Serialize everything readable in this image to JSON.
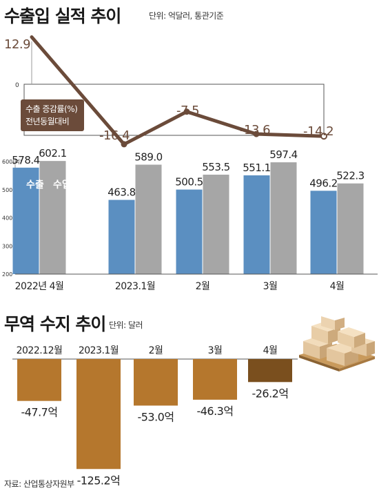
{
  "title1": "수출입 실적 추이",
  "unit1": "단위: 억달러, 통관기준",
  "title2": "무역 수지 추이",
  "unit2": "단위: 달러",
  "source": "자료: 산업통상자원부",
  "colors": {
    "export": "#5b8fc1",
    "import": "#a6a6a6",
    "growth_line": "#6b4b3a",
    "balance": "#b5772d",
    "balance_latest": "#7a4f1e",
    "growth_label": "#6b4b3a"
  },
  "chart_data": [
    {
      "type": "line",
      "legend": [
        "수출 증감률(%)",
        "전년동월대비"
      ],
      "zero_label": "0",
      "categories": [
        "2022년 4월",
        "2023.1월",
        "2월",
        "3월",
        "4월"
      ],
      "values": [
        12.9,
        -16.4,
        -7.5,
        -13.6,
        -14.2
      ],
      "labels": [
        "12.9",
        "-16.4",
        "-7.5",
        "-13.6",
        "-14.2"
      ]
    },
    {
      "type": "bar",
      "categories": [
        "2022년 4월",
        "2023.1월",
        "2월",
        "3월",
        "4월"
      ],
      "series": [
        {
          "name": "수출",
          "values": [
            578.4,
            463.8,
            500.5,
            551.1,
            496.2
          ],
          "labels": [
            "578.4",
            "463.8",
            "500.5",
            "551.1",
            "496.2"
          ]
        },
        {
          "name": "수입",
          "values": [
            602.1,
            589.0,
            553.5,
            597.4,
            522.3
          ],
          "labels": [
            "602.1",
            "589.0",
            "553.5",
            "597.4",
            "522.3"
          ]
        }
      ],
      "ylim": [
        200,
        600
      ],
      "yticks": [
        "200",
        "300",
        "400",
        "500",
        "600(억)"
      ]
    },
    {
      "type": "bar",
      "categories": [
        "2022.12월",
        "2023.1월",
        "2월",
        "3월",
        "4월"
      ],
      "values": [
        -47.7,
        -125.2,
        -53.0,
        -46.3,
        -26.2
      ],
      "labels": [
        "-47.7억",
        "-125.2억",
        "-53.0억",
        "-46.3억",
        "-26.2억"
      ]
    }
  ]
}
